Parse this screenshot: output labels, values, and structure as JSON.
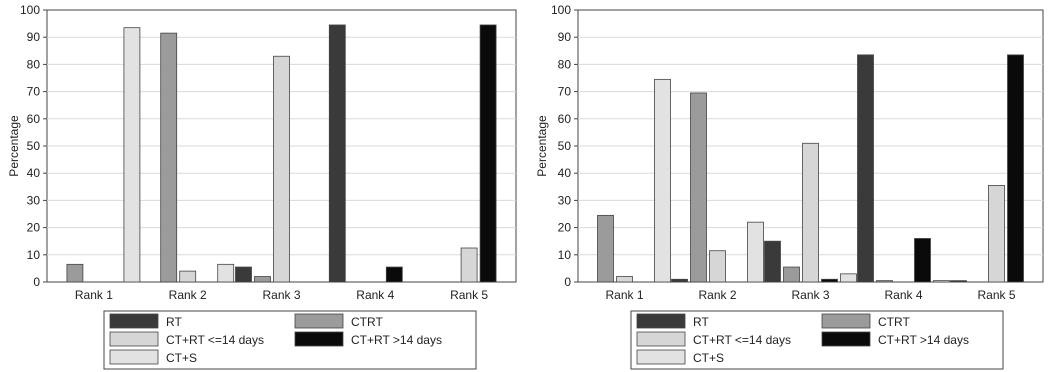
{
  "colors": {
    "RT": "#3a3a3a",
    "CTRT": "#9b9b9b",
    "CT+RT <=14 days": "#d6d6d6",
    "CT+RT >14 days": "#0a0a0a",
    "CT+S": "#e2e2e2"
  },
  "chart_data": [
    {
      "type": "bar",
      "ylabel": "Percentage",
      "ylim": [
        0,
        100
      ],
      "yticks": [
        0,
        10,
        20,
        30,
        40,
        50,
        60,
        70,
        80,
        90,
        100
      ],
      "categories": [
        "Rank 1",
        "Rank 2",
        "Rank 3",
        "Rank 4",
        "Rank 5"
      ],
      "legend_position": "bottom",
      "series": [
        {
          "name": "RT",
          "values": [
            0,
            0,
            5.5,
            94.5,
            0
          ]
        },
        {
          "name": "CTRT",
          "values": [
            6.5,
            91.5,
            2,
            0,
            0
          ]
        },
        {
          "name": "CT+RT <=14 days",
          "values": [
            0,
            4,
            83,
            0,
            12.5
          ]
        },
        {
          "name": "CT+RT >14 days",
          "values": [
            0,
            0,
            0,
            5.5,
            94.5
          ]
        },
        {
          "name": "CT+S",
          "values": [
            93.5,
            6.5,
            0,
            0,
            0
          ]
        }
      ]
    },
    {
      "type": "bar",
      "ylabel": "Percentage",
      "ylim": [
        0,
        100
      ],
      "yticks": [
        0,
        10,
        20,
        30,
        40,
        50,
        60,
        70,
        80,
        90,
        100
      ],
      "categories": [
        "Rank 1",
        "Rank 2",
        "Rank 3",
        "Rank 4",
        "Rank 5"
      ],
      "legend_position": "bottom",
      "series": [
        {
          "name": "RT",
          "values": [
            0,
            1,
            15,
            83.5,
            0.5
          ]
        },
        {
          "name": "CTRT",
          "values": [
            24.5,
            69.5,
            5.5,
            0.5,
            0
          ]
        },
        {
          "name": "CT+RT <=14 days",
          "values": [
            2,
            11.5,
            51,
            0,
            35.5
          ]
        },
        {
          "name": "CT+RT >14 days",
          "values": [
            0,
            0,
            1,
            16,
            83.5
          ]
        },
        {
          "name": "CT+S",
          "values": [
            74.5,
            22,
            3,
            0.5,
            0
          ]
        }
      ]
    }
  ]
}
